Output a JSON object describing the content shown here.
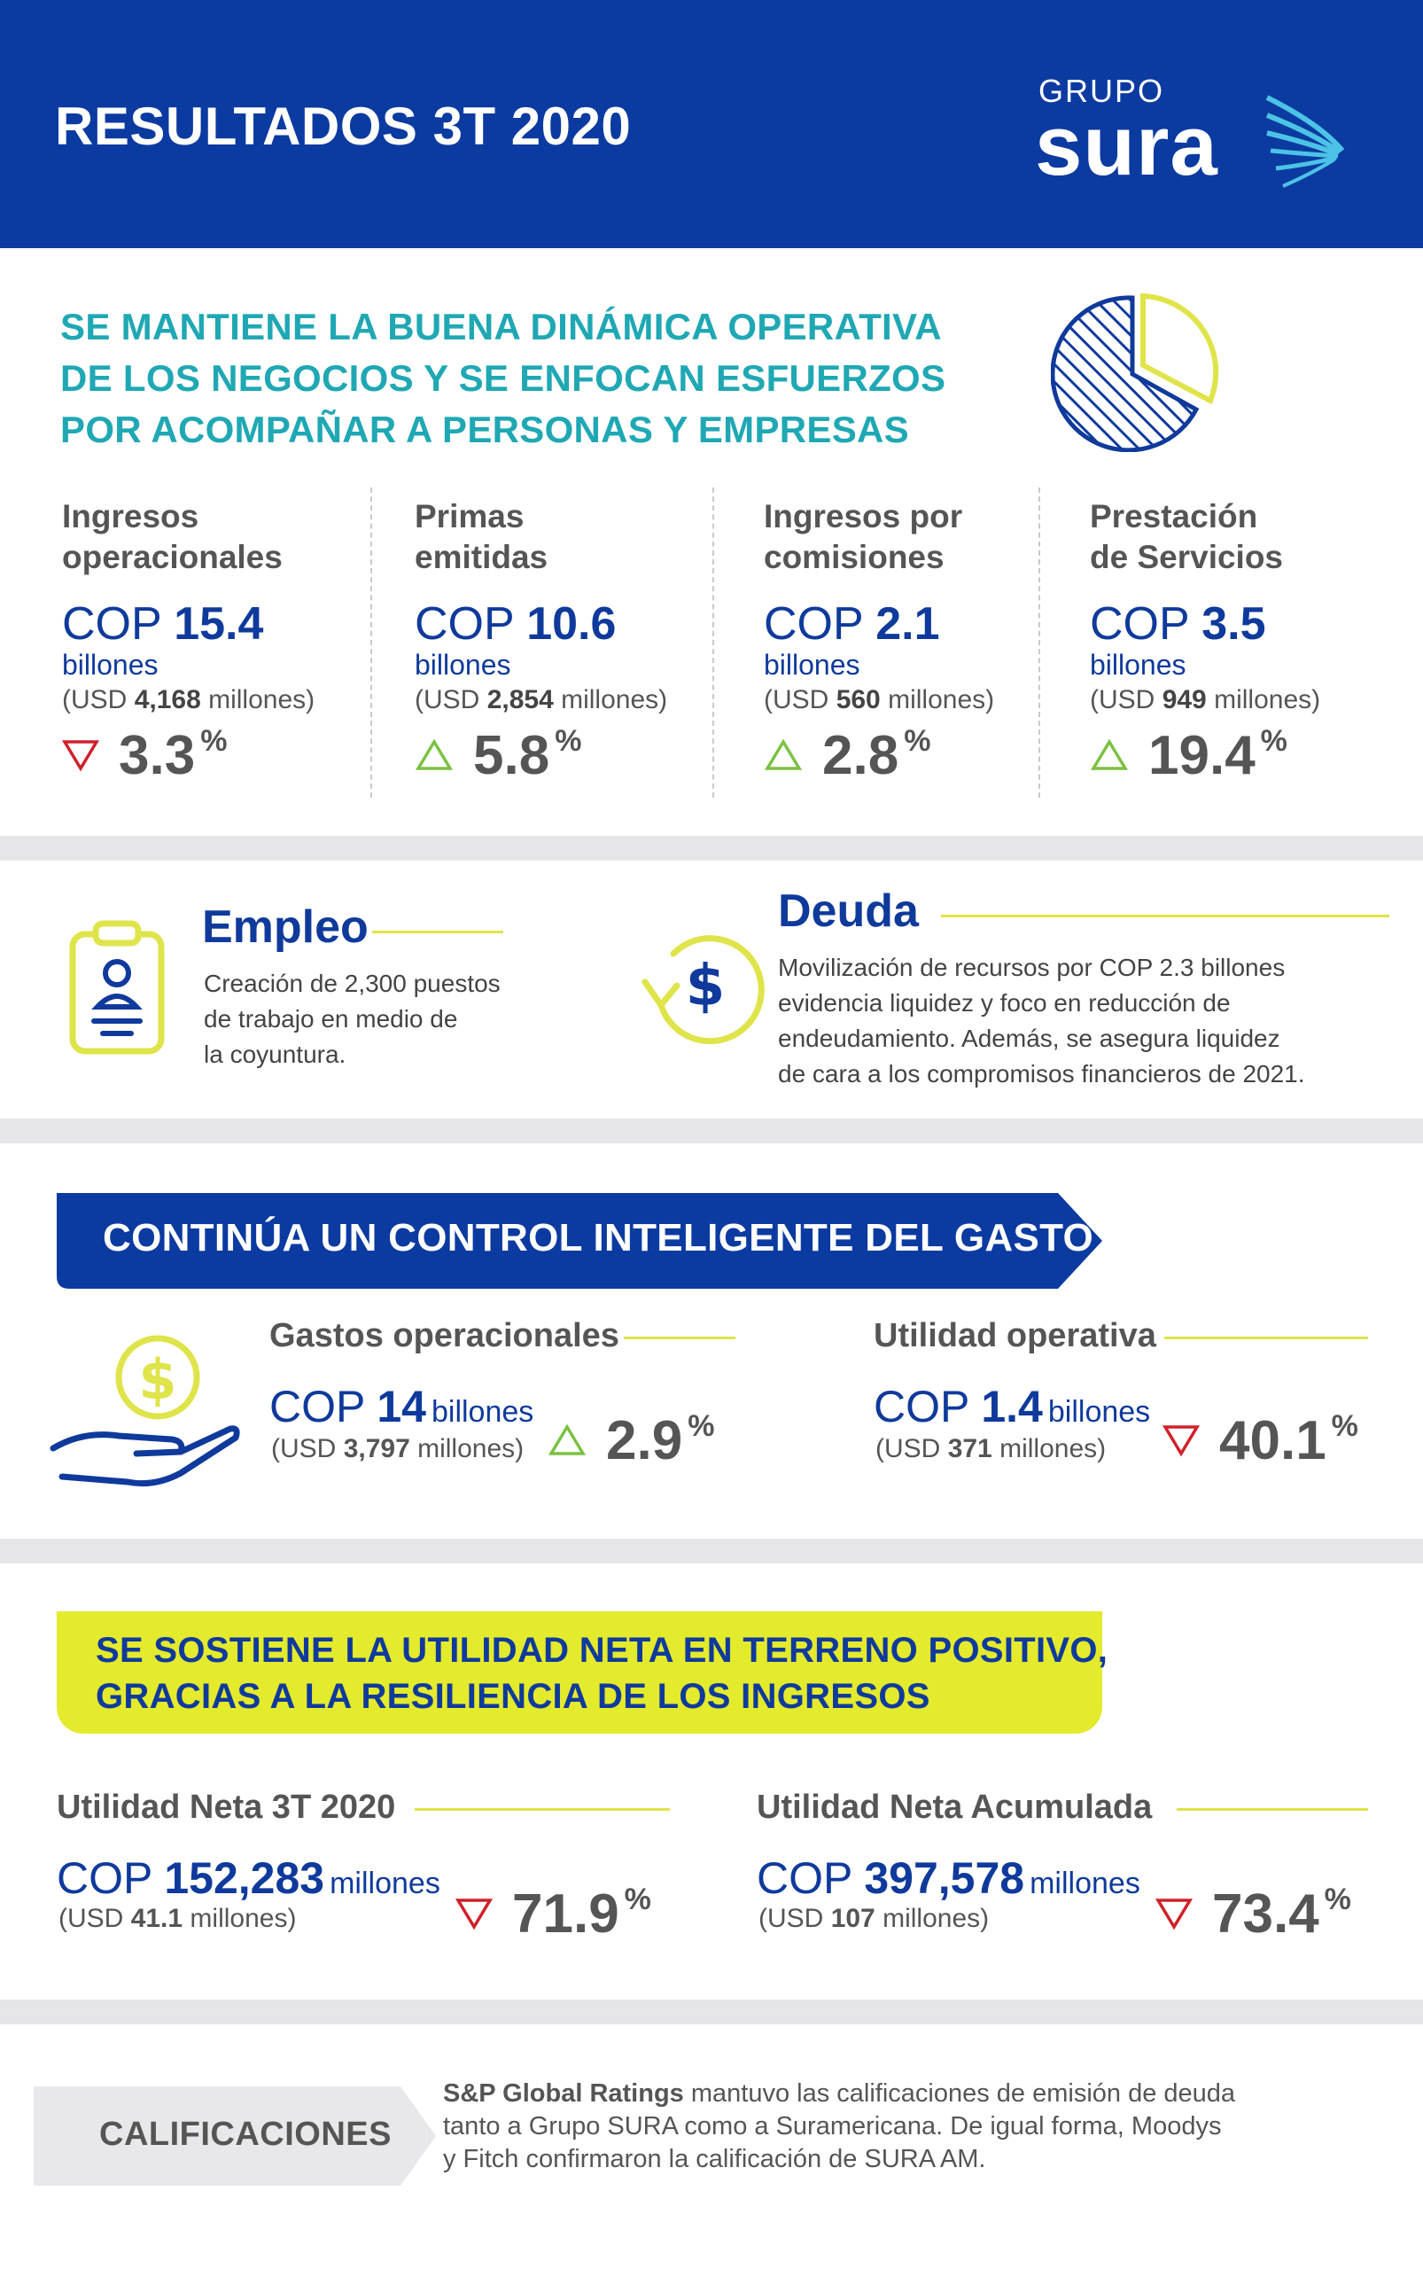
{
  "header": {
    "title": "RESULTADOS 3T 2020",
    "logo_top": "GRUPO",
    "logo_main": "sura"
  },
  "section1": {
    "title_lines": [
      "SE MANTIENE LA BUENA DINÁMICA OPERATIVA",
      "DE LOS NEGOCIOS Y SE ENFOCAN ESFUERZOS",
      "POR ACOMPAÑAR A PERSONAS Y EMPRESAS"
    ],
    "metrics": [
      {
        "label1": "Ingresos",
        "label2": "operacionales",
        "prefix": "COP",
        "value": "15.4",
        "unit": "billones",
        "usd_prefix": "(USD",
        "usd_value": "4,168",
        "usd_suffix": "millones)",
        "pct": "3.3",
        "pct_sign": "%",
        "direction": "down"
      },
      {
        "label1": "Primas",
        "label2": "emitidas",
        "prefix": "COP",
        "value": "10.6",
        "unit": "billones",
        "usd_prefix": "(USD",
        "usd_value": "2,854",
        "usd_suffix": "millones)",
        "pct": "5.8",
        "pct_sign": "%",
        "direction": "up"
      },
      {
        "label1": "Ingresos por",
        "label2": "comisiones",
        "prefix": "COP",
        "value": "2.1",
        "unit": "billones",
        "usd_prefix": "(USD",
        "usd_value": "560",
        "usd_suffix": "millones)",
        "pct": "2.8",
        "pct_sign": "%",
        "direction": "up"
      },
      {
        "label1": "Prestación",
        "label2": "de Servicios",
        "prefix": "COP",
        "value": "3.5",
        "unit": "billones",
        "usd_prefix": "(USD",
        "usd_value": "949",
        "usd_suffix": "millones)",
        "pct": "19.4",
        "pct_sign": "%",
        "direction": "up"
      }
    ]
  },
  "section2": {
    "empleo": {
      "title": "Empleo",
      "lines": [
        "Creación de 2,300 puestos",
        "de trabajo en medio de",
        "la coyuntura."
      ]
    },
    "deuda": {
      "title": "Deuda",
      "lines": [
        "Movilización de recursos por COP 2.3 billones",
        "evidencia liquidez y foco en reducción de",
        "endeudamiento. Además, se asegura liquidez",
        "de cara a los compromisos financieros de 2021."
      ]
    }
  },
  "section3": {
    "banner": "CONTINÚA UN CONTROL INTELIGENTE DEL GASTO",
    "gastos": {
      "label": "Gastos operacionales",
      "prefix": "COP",
      "value": "14",
      "unit": "billones",
      "usd_prefix": "(USD",
      "usd_value": "3,797",
      "usd_suffix": "millones)",
      "pct": "2.9",
      "pct_sign": "%",
      "direction": "up"
    },
    "utilidad": {
      "label": "Utilidad operativa",
      "prefix": "COP",
      "value": "1.4",
      "unit": "billones",
      "usd_prefix": "(USD",
      "usd_value": "371",
      "usd_suffix": "millones)",
      "pct": "40.1",
      "pct_sign": "%",
      "direction": "down"
    }
  },
  "section4": {
    "banner_lines": [
      "SE SOSTIENE LA UTILIDAD NETA EN TERRENO POSITIVO,",
      "GRACIAS A LA RESILIENCIA DE LOS INGRESOS"
    ],
    "neta3t": {
      "label": "Utilidad Neta 3T 2020",
      "prefix": "COP",
      "value": "152,283",
      "unit": "millones",
      "usd_prefix": "(USD",
      "usd_value": "41.1",
      "usd_suffix": "millones)",
      "pct": "71.9",
      "pct_sign": "%",
      "direction": "down"
    },
    "acumulada": {
      "label": "Utilidad Neta Acumulada",
      "prefix": "COP",
      "value": "397,578",
      "unit": "millones",
      "usd_prefix": "(USD",
      "usd_value": "107",
      "usd_suffix": "millones)",
      "pct": "73.4",
      "pct_sign": "%",
      "direction": "down"
    }
  },
  "calificaciones": {
    "label": "CALIFICACIONES",
    "bold_lead": "S&P Global Ratings",
    "text1": " mantuvo las calificaciones de emisión de deuda",
    "line2": "tanto a Grupo SURA como a Suramericana. De igual forma, Moodys",
    "line3": "y Fitch confirmaron la calificación de SURA AM."
  },
  "colors": {
    "header_blue": "#0b3aa1",
    "teal": "#1fa8b4",
    "yellow": "#e4ea2c",
    "down_red": "#d0202a",
    "up_green": "#7cc142"
  }
}
